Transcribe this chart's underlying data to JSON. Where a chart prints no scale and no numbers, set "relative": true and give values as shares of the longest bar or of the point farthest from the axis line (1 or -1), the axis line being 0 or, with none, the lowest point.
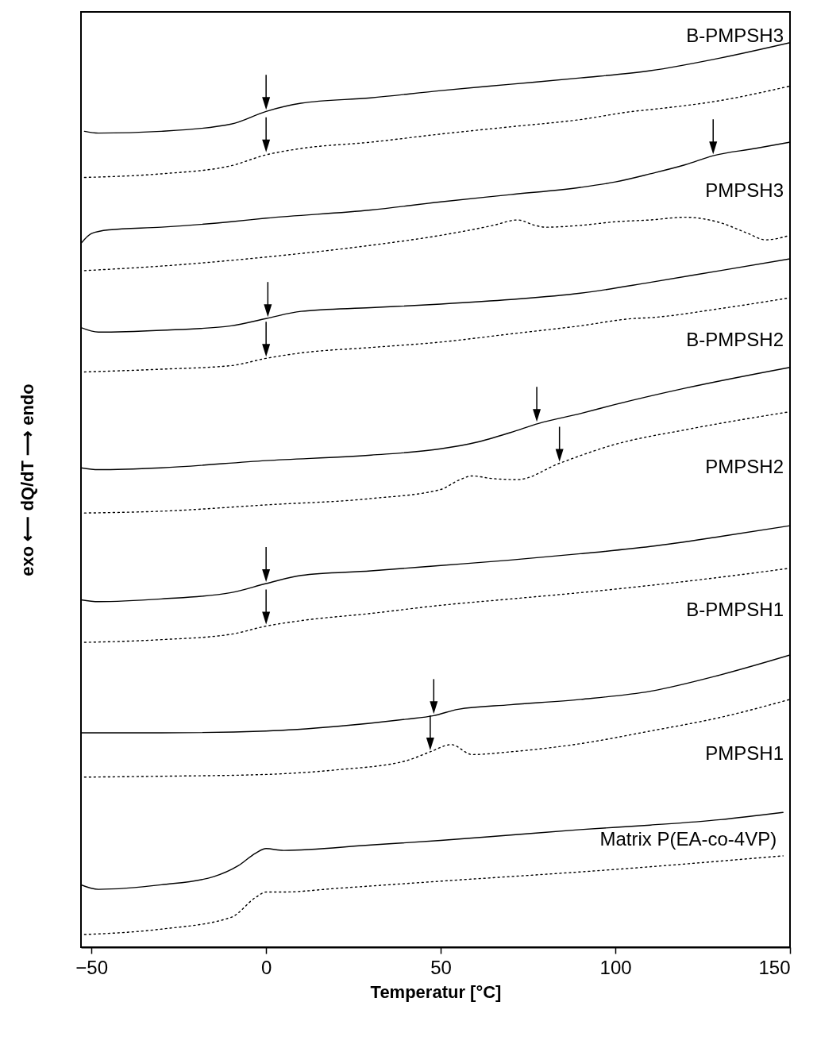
{
  "chart_data": {
    "type": "line",
    "relative": true,
    "xlabel": "Temperatur [°C]",
    "ylabel": "exo ⟵ dQ/dT ⟶ endo",
    "xlim": [
      -53,
      150
    ],
    "xticks": [
      -50,
      0,
      50,
      100,
      150
    ],
    "series": [
      {
        "name": "B-PMPSH3",
        "color": "#000000",
        "line_style": "solid",
        "x": [
          -52,
          -48,
          -30,
          -10,
          0,
          10,
          30,
          50,
          70,
          90,
          110,
          130,
          150
        ],
        "values": [
          0.902,
          0.9,
          0.902,
          0.91,
          0.924,
          0.933,
          0.939,
          0.947,
          0.954,
          0.961,
          0.969,
          0.983,
          1
        ]
      },
      {
        "color": "#000000",
        "line_style": "dotted",
        "x": [
          -52,
          -30,
          -10,
          0,
          10,
          30,
          50,
          70,
          90,
          105,
          110,
          130,
          150
        ],
        "values": [
          0.851,
          0.855,
          0.864,
          0.876,
          0.883,
          0.89,
          0.899,
          0.907,
          0.915,
          0.924,
          0.926,
          0.936,
          0.952
        ]
      },
      {
        "name": "PMPSH3",
        "color": "#000000",
        "line_style": "solid",
        "x": [
          -53,
          -50,
          -45,
          -30,
          -10,
          0,
          30,
          50,
          70,
          90,
          100,
          110,
          120,
          128,
          140,
          150
        ],
        "values": [
          0.778,
          0.789,
          0.793,
          0.796,
          0.802,
          0.806,
          0.815,
          0.824,
          0.832,
          0.84,
          0.846,
          0.855,
          0.865,
          0.875,
          0.883,
          0.89
        ]
      },
      {
        "color": "#000000",
        "line_style": "dotted",
        "x": [
          -52,
          -30,
          0,
          30,
          50,
          65,
          72,
          77,
          80,
          90,
          100,
          110,
          120,
          130,
          138,
          143,
          150
        ],
        "values": [
          0.748,
          0.753,
          0.763,
          0.776,
          0.787,
          0.798,
          0.804,
          0.798,
          0.796,
          0.798,
          0.802,
          0.804,
          0.807,
          0.801,
          0.789,
          0.782,
          0.787
        ]
      },
      {
        "color": "#000000",
        "line_style": "solid",
        "x": [
          -53,
          -48,
          -30,
          -10,
          0,
          10,
          30,
          50,
          70,
          90,
          110,
          130,
          150
        ],
        "values": [
          0.685,
          0.68,
          0.682,
          0.687,
          0.695,
          0.703,
          0.707,
          0.711,
          0.716,
          0.723,
          0.735,
          0.748,
          0.761
        ]
      },
      {
        "name": "B-PMPSH2",
        "color": "#000000",
        "line_style": "dotted",
        "x": [
          -52,
          -30,
          -10,
          0,
          10,
          30,
          50,
          70,
          90,
          105,
          110,
          130,
          150
        ],
        "values": [
          0.636,
          0.639,
          0.643,
          0.651,
          0.657,
          0.663,
          0.669,
          0.678,
          0.687,
          0.695,
          0.696,
          0.706,
          0.718
        ]
      },
      {
        "color": "#000000",
        "line_style": "solid",
        "x": [
          -53,
          -48,
          -30,
          0,
          30,
          50,
          60,
          70,
          78,
          90,
          100,
          120,
          150
        ],
        "values": [
          0.53,
          0.528,
          0.53,
          0.538,
          0.544,
          0.551,
          0.558,
          0.569,
          0.579,
          0.59,
          0.6,
          0.618,
          0.641
        ]
      },
      {
        "name": "PMPSH2",
        "color": "#000000",
        "line_style": "dotted",
        "x": [
          -52,
          -30,
          0,
          30,
          50,
          55,
          59,
          65,
          72,
          84,
          100,
          120,
          150
        ],
        "values": [
          0.48,
          0.482,
          0.489,
          0.496,
          0.506,
          0.516,
          0.521,
          0.518,
          0.517,
          0.535,
          0.556,
          0.572,
          0.592
        ]
      },
      {
        "color": "#000000",
        "line_style": "solid",
        "x": [
          -53,
          -48,
          -30,
          -10,
          0,
          10,
          30,
          50,
          70,
          90,
          110,
          130,
          150
        ],
        "values": [
          0.384,
          0.382,
          0.385,
          0.392,
          0.402,
          0.411,
          0.416,
          0.422,
          0.428,
          0.435,
          0.443,
          0.454,
          0.466
        ]
      },
      {
        "name": "B-PMPSH1",
        "color": "#000000",
        "line_style": "dotted",
        "x": [
          -52,
          -30,
          -10,
          0,
          10,
          30,
          50,
          70,
          90,
          110,
          130,
          150
        ],
        "values": [
          0.337,
          0.34,
          0.346,
          0.355,
          0.361,
          0.369,
          0.378,
          0.385,
          0.392,
          0.4,
          0.409,
          0.419
        ]
      },
      {
        "color": "#000000",
        "line_style": "solid",
        "x": [
          -53,
          -30,
          0,
          20,
          40,
          48,
          55,
          70,
          90,
          110,
          130,
          150
        ],
        "values": [
          0.237,
          0.237,
          0.239,
          0.244,
          0.252,
          0.256,
          0.263,
          0.268,
          0.274,
          0.283,
          0.301,
          0.323
        ]
      },
      {
        "name": "PMPSH1",
        "color": "#000000",
        "line_style": "dotted",
        "x": [
          -52,
          -30,
          0,
          20,
          40,
          47,
          53,
          59,
          70,
          90,
          110,
          130,
          150
        ],
        "values": [
          0.188,
          0.189,
          0.191,
          0.196,
          0.206,
          0.216,
          0.224,
          0.213,
          0.216,
          0.225,
          0.239,
          0.254,
          0.274
        ]
      },
      {
        "name": "Matrix P(EA-co-4VP)",
        "color": "#000000",
        "line_style": "solid",
        "x": [
          -53,
          -48,
          -30,
          -15,
          -8,
          -3,
          0,
          5,
          30,
          50,
          70,
          90,
          110,
          130,
          148
        ],
        "values": [
          0.069,
          0.064,
          0.069,
          0.078,
          0.09,
          0.104,
          0.109,
          0.107,
          0.113,
          0.118,
          0.124,
          0.13,
          0.135,
          0.141,
          0.149
        ]
      },
      {
        "color": "#000000",
        "line_style": "dotted",
        "x": [
          -52,
          -30,
          -10,
          -3,
          0,
          5,
          20,
          50,
          100,
          148
        ],
        "values": [
          0.014,
          0.02,
          0.033,
          0.055,
          0.061,
          0.061,
          0.065,
          0.073,
          0.086,
          0.101
        ]
      }
    ]
  }
}
